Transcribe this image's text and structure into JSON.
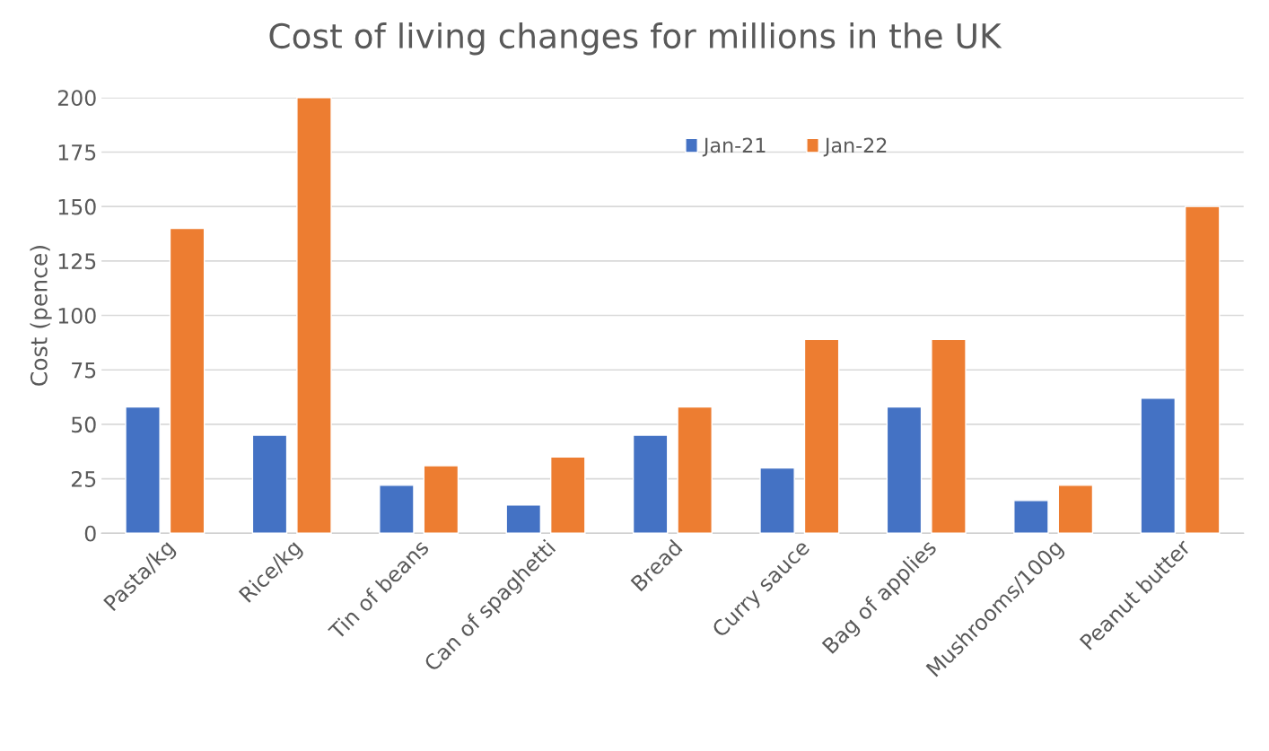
{
  "chart_data": {
    "type": "bar",
    "title": "Cost of living changes for millions in the UK",
    "ylabel": "Cost (pence)",
    "categories": [
      "Pasta/kg",
      "Rice/kg",
      "Tin of beans",
      "Can of spaghetti",
      "Bread",
      "Curry sauce",
      "Bag of applies",
      "Mushrooms/100g",
      "Peanut butter"
    ],
    "series": [
      {
        "name": "Jan-21",
        "color": "#4472c4",
        "values": [
          58,
          45,
          22,
          13,
          45,
          30,
          58,
          15,
          62
        ]
      },
      {
        "name": "Jan-22",
        "color": "#ed7d31",
        "values": [
          140,
          200,
          31,
          35,
          58,
          89,
          89,
          22,
          150
        ]
      }
    ],
    "ylim": [
      0,
      200
    ],
    "yticks": [
      0,
      25,
      50,
      75,
      100,
      125,
      150,
      175,
      200
    ],
    "grid": "y",
    "legend": "top"
  }
}
